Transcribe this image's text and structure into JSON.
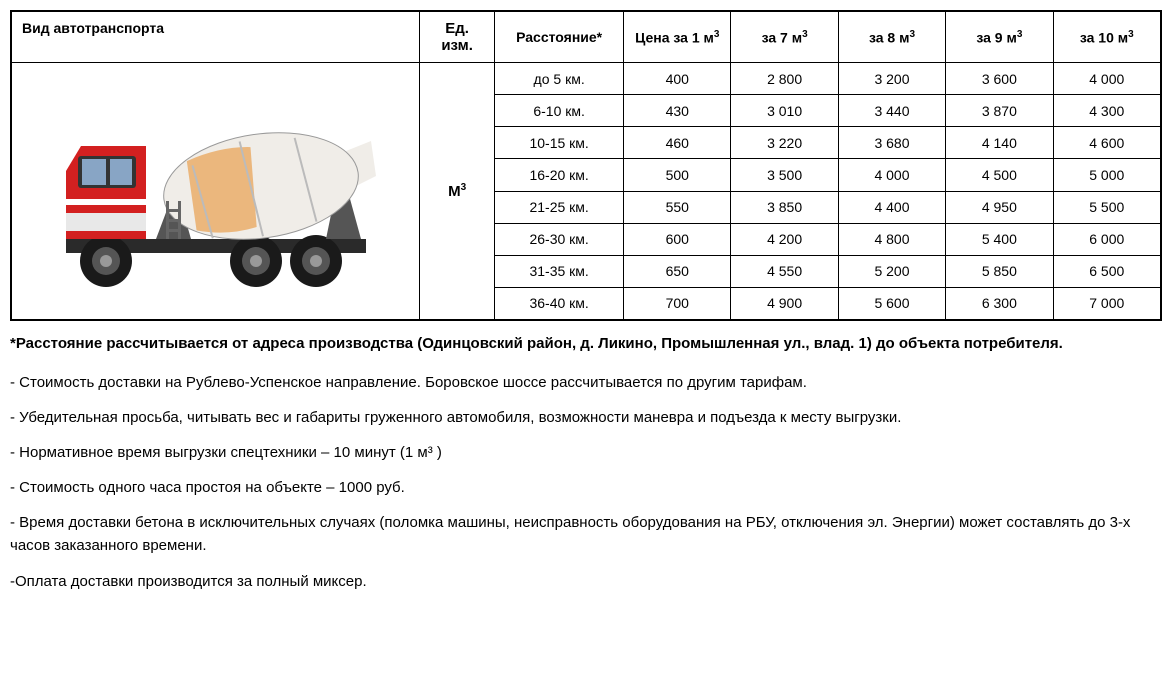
{
  "table": {
    "headers": {
      "vehicle": "Вид автотранспорта",
      "unit": "Ед. изм.",
      "distance": "Расстояние*",
      "price1": "Цена за 1 м",
      "price7": "за 7 м",
      "price8": "за 8 м",
      "price9": "за 9 м",
      "price10": "за 10 м"
    },
    "unit_value": "М",
    "rows": [
      {
        "distance": "до 5 км.",
        "p1": "400",
        "p7": "2 800",
        "p8": "3 200",
        "p9": "3 600",
        "p10": "4 000"
      },
      {
        "distance": "6-10 км.",
        "p1": "430",
        "p7": "3 010",
        "p8": "3 440",
        "p9": "3 870",
        "p10": "4 300"
      },
      {
        "distance": "10-15 км.",
        "p1": "460",
        "p7": "3 220",
        "p8": "3 680",
        "p9": "4 140",
        "p10": "4 600"
      },
      {
        "distance": "16-20 км.",
        "p1": "500",
        "p7": "3 500",
        "p8": "4 000",
        "p9": "4 500",
        "p10": "5 000"
      },
      {
        "distance": "21-25 км.",
        "p1": "550",
        "p7": "3 850",
        "p8": "4 400",
        "p9": "4 950",
        "p10": "5 500"
      },
      {
        "distance": "26-30 км.",
        "p1": "600",
        "p7": "4 200",
        "p8": "4 800",
        "p9": "5 400",
        "p10": "6 000"
      },
      {
        "distance": "31-35 км.",
        "p1": "650",
        "p7": "4 550",
        "p8": "5 200",
        "p9": "5 850",
        "p10": "6 500"
      },
      {
        "distance": "36-40 км.",
        "p1": "700",
        "p7": "4 900",
        "p8": "5 600",
        "p9": "6 300",
        "p10": "7 000"
      }
    ]
  },
  "footnote": "*Расстояние рассчитывается от адреса производства (Одинцовский район, д. Ликино, Промышленная ул., влад. 1) до объекта потребителя.",
  "notes": {
    "n1": "- Стоимость доставки на Рублево-Успенское направление. Боровское шоссе рассчитывается по другим тарифам.",
    "n2": "- Убедительная просьба, читывать вес и габариты груженного автомобиля, возможности маневра и подъезда к месту выгрузки.",
    "n3": "- Нормативное время выгрузки спецтехники – 10 минут (1 м³ )",
    "n4": "- Стоимость одного часа простоя на объекте – 1000 руб.",
    "n5": "- Время доставки бетона в исключительных случаях (поломка машины,  неисправность оборудования на РБУ, отключения эл. Энергии) может составлять до 3-х часов заказанного  времени.",
    "n6": "-Оплата доставки производится за полный миксер."
  },
  "colors": {
    "border": "#000000",
    "text": "#000000",
    "background": "#ffffff",
    "truck_cab": "#d32020",
    "truck_drum": "#f0ede8",
    "truck_accent": "#e8a050"
  }
}
